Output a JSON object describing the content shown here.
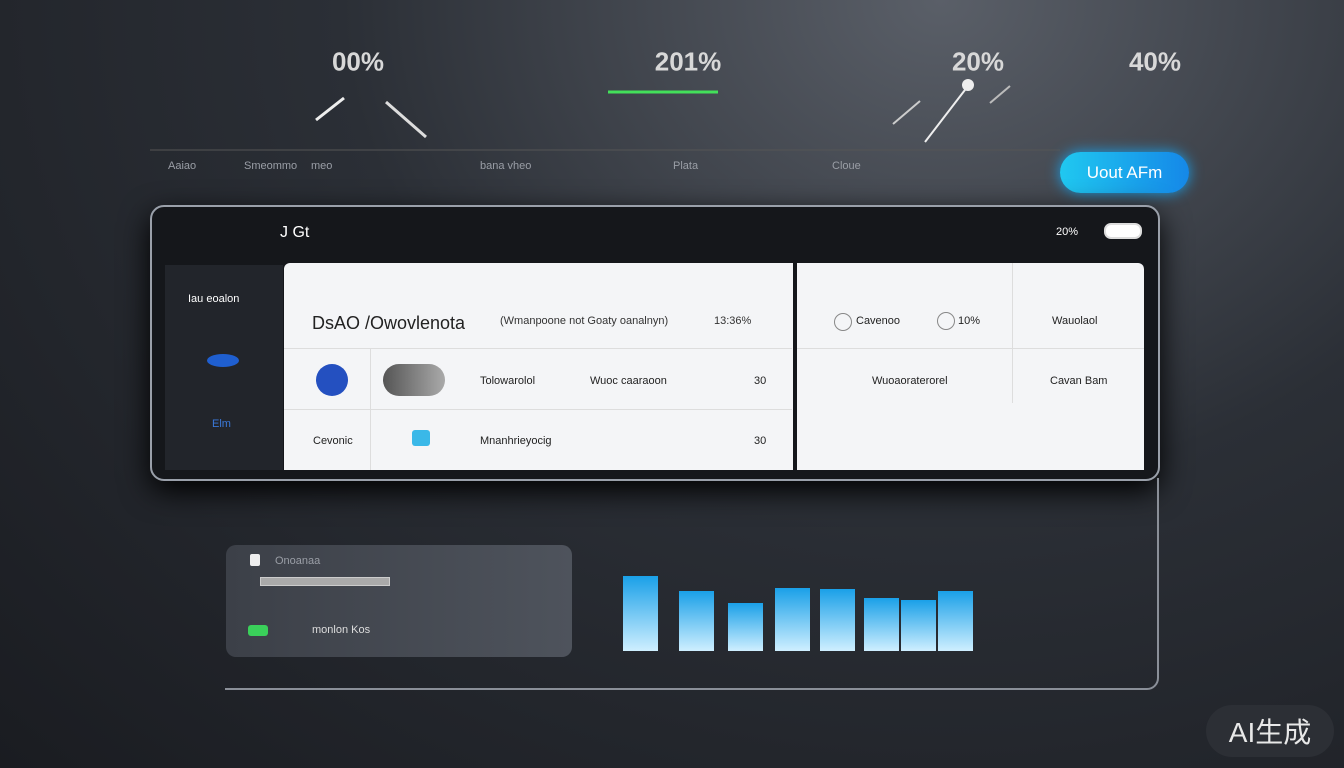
{
  "stats": [
    "00%",
    "201%",
    "20%",
    "40%"
  ],
  "nav": [
    "Aaiao",
    "Smeommo",
    "meo",
    "bana vheo",
    "Plata",
    "Cloue"
  ],
  "button": "Uout AFm",
  "panel": {
    "title": "J Gt",
    "status": "20%",
    "sidebar": {
      "title": "Iau eoalon",
      "item": "Elm"
    },
    "main": {
      "heading": "DsAO /Owovlenota",
      "subheading": "(Wmanpoone not Goaty oanalnyn)",
      "stamp": "13:36%",
      "rows": [
        [
          "Tolowarolol",
          "Wuoc caaraoon",
          30
        ],
        [
          "Cevonic",
          "Mnanhrieyocig",
          30
        ]
      ]
    },
    "side": {
      "header": [
        "Cavenoo",
        "10%",
        "Wauolaol"
      ],
      "row": [
        "Wuoaoraterorel",
        "Cavan Bam"
      ]
    }
  },
  "card": {
    "title": "Onoanaa",
    "label": "monlon Kos"
  },
  "chart_data": {
    "type": "bar",
    "values": [
      75,
      60,
      48,
      63,
      62,
      53,
      51,
      60
    ],
    "ylim": [
      0,
      100
    ],
    "color": "#1aa0e8"
  },
  "watermark": "AI生成"
}
